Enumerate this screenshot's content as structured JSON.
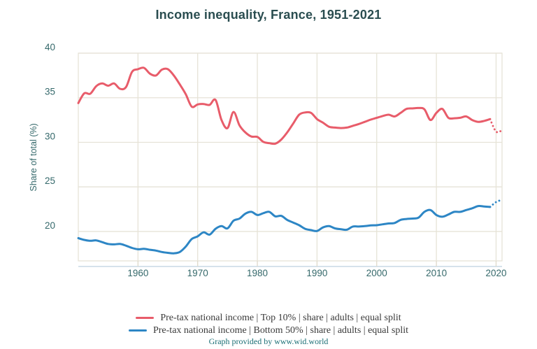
{
  "title": "Income inequality, France, 1951-2021",
  "footer": "Graph provided by www.wid.world",
  "colors": {
    "title_text": "#2a4d50",
    "axis_text": "#35696b",
    "gridline": "#e6e3d7",
    "axis_line": "#bdd1df",
    "tick_mark": "#ded9ca",
    "top10_line": "#e85c6a",
    "bottom50_line": "#2d86c5",
    "legend_text": "#3a3a3a",
    "footer_text": "#1b6f75",
    "background": "#ffffff"
  },
  "y_axis": {
    "label": "Share of total (%)",
    "ticks": [
      20,
      25,
      30,
      35,
      40
    ]
  },
  "x_axis": {
    "ticks": [
      1960,
      1970,
      1980,
      1990,
      2000,
      2010,
      2020
    ]
  },
  "legend": [
    {
      "label": "Pre-tax national income | Top 10% | share | adults | equal split",
      "color": "#e85c6a"
    },
    {
      "label": "Pre-tax national income | Bottom 50% | share | adults | equal split",
      "color": "#2d86c5"
    }
  ],
  "chart_data": {
    "type": "line",
    "title": "Income inequality, France, 1951-2021",
    "ylabel": "Share of total (%)",
    "x_range": [
      1950,
      2021
    ],
    "y_range": [
      16.7,
      40
    ],
    "grid": true,
    "legend_position": "bottom",
    "dotted_from_year": 2019,
    "x": [
      1950,
      1951,
      1952,
      1953,
      1954,
      1955,
      1956,
      1957,
      1958,
      1959,
      1960,
      1961,
      1962,
      1963,
      1964,
      1965,
      1966,
      1967,
      1968,
      1969,
      1970,
      1971,
      1972,
      1973,
      1974,
      1975,
      1976,
      1977,
      1978,
      1979,
      1980,
      1981,
      1982,
      1983,
      1984,
      1985,
      1986,
      1987,
      1988,
      1989,
      1990,
      1991,
      1992,
      1993,
      1994,
      1995,
      1996,
      1997,
      1998,
      1999,
      2000,
      2001,
      2002,
      2003,
      2004,
      2005,
      2006,
      2007,
      2008,
      2009,
      2010,
      2011,
      2012,
      2013,
      2014,
      2015,
      2016,
      2017,
      2018,
      2019,
      2020,
      2021
    ],
    "series": [
      {
        "name": "Pre-tax national income | Top 10% | share | adults | equal split",
        "color": "#e85c6a",
        "values": [
          34.4,
          35.5,
          35.45,
          36.3,
          36.6,
          36.35,
          36.6,
          36.0,
          36.2,
          37.9,
          38.2,
          38.35,
          37.7,
          37.5,
          38.15,
          38.2,
          37.5,
          36.5,
          35.4,
          34.0,
          34.25,
          34.3,
          34.2,
          34.75,
          32.5,
          31.6,
          33.4,
          31.9,
          31.1,
          30.65,
          30.6,
          30.05,
          29.9,
          29.85,
          30.3,
          31.1,
          32.1,
          33.1,
          33.35,
          33.3,
          32.6,
          32.2,
          31.75,
          31.65,
          31.6,
          31.65,
          31.85,
          32.05,
          32.3,
          32.55,
          32.75,
          32.95,
          33.1,
          32.9,
          33.3,
          33.75,
          33.8,
          33.85,
          33.7,
          32.5,
          33.3,
          33.75,
          32.75,
          32.7,
          32.75,
          32.9,
          32.5,
          32.3,
          32.4,
          32.6,
          31.2,
          31.35
        ]
      },
      {
        "name": "Pre-tax national income | Bottom 50% | share | adults | equal split",
        "color": "#2d86c5",
        "values": [
          19.25,
          19.05,
          18.95,
          19.0,
          18.8,
          18.6,
          18.55,
          18.6,
          18.4,
          18.15,
          18.0,
          18.05,
          17.95,
          17.85,
          17.7,
          17.6,
          17.55,
          17.7,
          18.3,
          19.15,
          19.45,
          19.9,
          19.65,
          20.3,
          20.6,
          20.35,
          21.2,
          21.45,
          22.0,
          22.2,
          21.85,
          22.05,
          22.2,
          21.7,
          21.75,
          21.3,
          21.0,
          20.7,
          20.3,
          20.15,
          20.05,
          20.45,
          20.6,
          20.35,
          20.25,
          20.2,
          20.55,
          20.55,
          20.6,
          20.68,
          20.7,
          20.8,
          20.9,
          20.95,
          21.3,
          21.4,
          21.45,
          21.55,
          22.2,
          22.4,
          21.85,
          21.65,
          21.9,
          22.2,
          22.2,
          22.4,
          22.6,
          22.85,
          22.8,
          22.75,
          23.3,
          23.55
        ]
      }
    ]
  }
}
